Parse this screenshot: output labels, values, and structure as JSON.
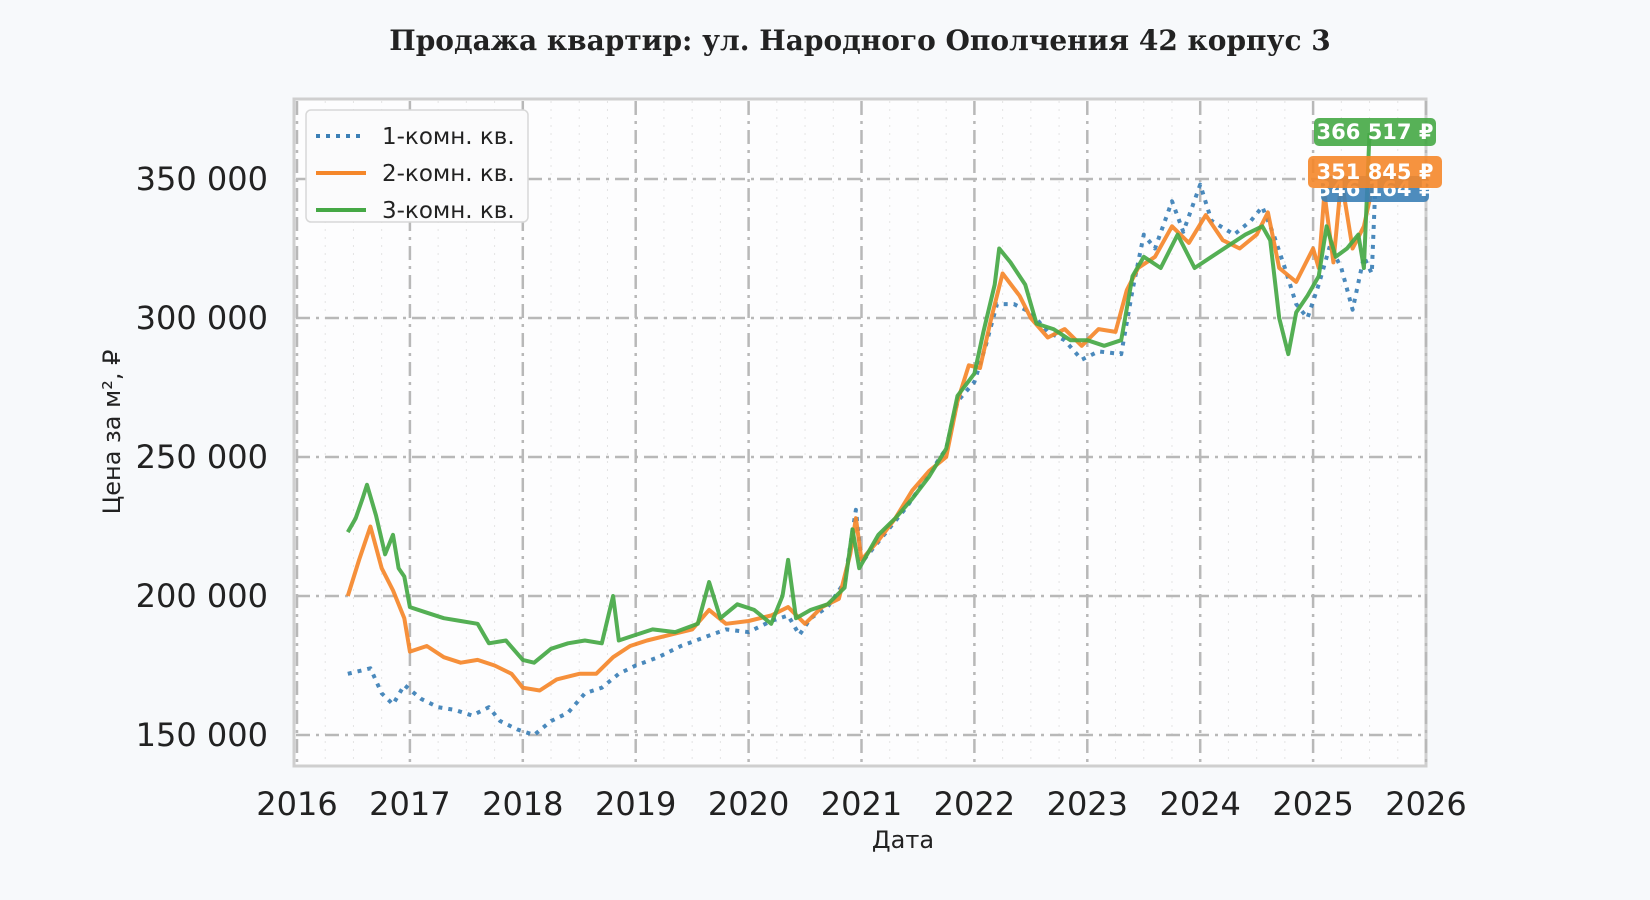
{
  "chart_data": {
    "type": "line",
    "title": "Продажа квартир: ул. Народного Ополчения 42 корпус 3",
    "xlabel": "Дата",
    "ylabel": "Цена за м², ₽",
    "x_ticks": [
      "2016",
      "2017",
      "2018",
      "2019",
      "2020",
      "2021",
      "2022",
      "2023",
      "2024",
      "2025",
      "2026"
    ],
    "y_ticks": [
      "150 000",
      "200 000",
      "250 000",
      "300 000",
      "350 000"
    ],
    "xlim": [
      2016,
      2026
    ],
    "ylim": [
      140000,
      378000
    ],
    "grid": true,
    "legend_position": "upper left",
    "series": [
      {
        "name": "1-комн. кв.",
        "color": "#3b7fb6",
        "style": "dotted",
        "last_value_label": "346 164 ₽",
        "points": [
          [
            2016.45,
            172000
          ],
          [
            2016.55,
            173000
          ],
          [
            2016.65,
            174000
          ],
          [
            2016.75,
            165000
          ],
          [
            2016.85,
            161000
          ],
          [
            2016.95,
            168000
          ],
          [
            2017.1,
            163000
          ],
          [
            2017.25,
            160000
          ],
          [
            2017.4,
            159000
          ],
          [
            2017.55,
            157000
          ],
          [
            2017.7,
            160000
          ],
          [
            2017.8,
            155000
          ],
          [
            2017.95,
            152000
          ],
          [
            2018.1,
            150000
          ],
          [
            2018.25,
            155000
          ],
          [
            2018.4,
            158000
          ],
          [
            2018.55,
            165000
          ],
          [
            2018.7,
            167000
          ],
          [
            2018.85,
            172000
          ],
          [
            2019.0,
            175000
          ],
          [
            2019.2,
            178000
          ],
          [
            2019.4,
            182000
          ],
          [
            2019.6,
            185000
          ],
          [
            2019.8,
            188000
          ],
          [
            2020.0,
            187000
          ],
          [
            2020.2,
            191000
          ],
          [
            2020.35,
            193000
          ],
          [
            2020.45,
            186000
          ],
          [
            2020.55,
            192000
          ],
          [
            2020.7,
            196000
          ],
          [
            2020.85,
            205000
          ],
          [
            2020.95,
            231000
          ],
          [
            2021.0,
            212000
          ],
          [
            2021.2,
            222000
          ],
          [
            2021.4,
            232000
          ],
          [
            2021.6,
            244000
          ],
          [
            2021.75,
            253000
          ],
          [
            2021.85,
            270000
          ],
          [
            2022.0,
            277000
          ],
          [
            2022.1,
            290000
          ],
          [
            2022.2,
            305000
          ],
          [
            2022.35,
            305000
          ],
          [
            2022.5,
            302000
          ],
          [
            2022.65,
            295000
          ],
          [
            2022.8,
            292000
          ],
          [
            2022.95,
            285000
          ],
          [
            2023.1,
            288000
          ],
          [
            2023.3,
            287000
          ],
          [
            2023.4,
            310000
          ],
          [
            2023.5,
            330000
          ],
          [
            2023.6,
            325000
          ],
          [
            2023.75,
            342000
          ],
          [
            2023.85,
            331000
          ],
          [
            2024.0,
            348000
          ],
          [
            2024.1,
            335000
          ],
          [
            2024.3,
            330000
          ],
          [
            2024.45,
            335000
          ],
          [
            2024.55,
            340000
          ],
          [
            2024.65,
            330000
          ],
          [
            2024.75,
            318000
          ],
          [
            2024.85,
            305000
          ],
          [
            2024.95,
            300000
          ],
          [
            2025.05,
            312000
          ],
          [
            2025.15,
            326000
          ],
          [
            2025.25,
            318000
          ],
          [
            2025.35,
            303000
          ],
          [
            2025.45,
            322000
          ],
          [
            2025.52,
            316000
          ],
          [
            2025.55,
            346164
          ]
        ]
      },
      {
        "name": "2-комн. кв.",
        "color": "#f5872a",
        "style": "solid",
        "last_value_label": "351 845 ₽",
        "points": [
          [
            2016.45,
            200000
          ],
          [
            2016.55,
            213000
          ],
          [
            2016.65,
            225000
          ],
          [
            2016.75,
            210000
          ],
          [
            2016.85,
            202000
          ],
          [
            2016.95,
            192000
          ],
          [
            2017.0,
            180000
          ],
          [
            2017.15,
            182000
          ],
          [
            2017.3,
            178000
          ],
          [
            2017.45,
            176000
          ],
          [
            2017.6,
            177000
          ],
          [
            2017.75,
            175000
          ],
          [
            2017.9,
            172000
          ],
          [
            2018.0,
            167000
          ],
          [
            2018.15,
            166000
          ],
          [
            2018.3,
            170000
          ],
          [
            2018.5,
            172000
          ],
          [
            2018.65,
            172000
          ],
          [
            2018.8,
            178000
          ],
          [
            2018.95,
            182000
          ],
          [
            2019.1,
            184000
          ],
          [
            2019.3,
            186000
          ],
          [
            2019.5,
            188000
          ],
          [
            2019.65,
            195000
          ],
          [
            2019.8,
            190000
          ],
          [
            2020.0,
            191000
          ],
          [
            2020.2,
            193000
          ],
          [
            2020.35,
            196000
          ],
          [
            2020.5,
            190000
          ],
          [
            2020.65,
            196000
          ],
          [
            2020.8,
            199000
          ],
          [
            2020.9,
            215000
          ],
          [
            2020.95,
            228000
          ],
          [
            2021.0,
            213000
          ],
          [
            2021.15,
            220000
          ],
          [
            2021.3,
            228000
          ],
          [
            2021.45,
            238000
          ],
          [
            2021.6,
            245000
          ],
          [
            2021.75,
            250000
          ],
          [
            2021.85,
            270000
          ],
          [
            2021.95,
            283000
          ],
          [
            2022.05,
            282000
          ],
          [
            2022.15,
            300000
          ],
          [
            2022.25,
            316000
          ],
          [
            2022.4,
            308000
          ],
          [
            2022.5,
            300000
          ],
          [
            2022.65,
            293000
          ],
          [
            2022.8,
            296000
          ],
          [
            2022.95,
            290000
          ],
          [
            2023.1,
            296000
          ],
          [
            2023.25,
            295000
          ],
          [
            2023.35,
            310000
          ],
          [
            2023.45,
            318000
          ],
          [
            2023.6,
            322000
          ],
          [
            2023.75,
            333000
          ],
          [
            2023.9,
            327000
          ],
          [
            2024.05,
            337000
          ],
          [
            2024.2,
            328000
          ],
          [
            2024.35,
            325000
          ],
          [
            2024.5,
            330000
          ],
          [
            2024.6,
            338000
          ],
          [
            2024.7,
            318000
          ],
          [
            2024.85,
            313000
          ],
          [
            2025.0,
            325000
          ],
          [
            2025.05,
            318000
          ],
          [
            2025.1,
            345000
          ],
          [
            2025.18,
            320000
          ],
          [
            2025.25,
            350000
          ],
          [
            2025.35,
            325000
          ],
          [
            2025.45,
            333000
          ],
          [
            2025.55,
            351845
          ]
        ]
      },
      {
        "name": "3-комн. кв.",
        "color": "#45a845",
        "style": "solid",
        "last_value_label": "366 517 ₽",
        "points": [
          [
            2016.45,
            223000
          ],
          [
            2016.52,
            228000
          ],
          [
            2016.58,
            235000
          ],
          [
            2016.62,
            240000
          ],
          [
            2016.7,
            229000
          ],
          [
            2016.78,
            215000
          ],
          [
            2016.85,
            222000
          ],
          [
            2016.9,
            210000
          ],
          [
            2016.95,
            207000
          ],
          [
            2017.0,
            196000
          ],
          [
            2017.15,
            194000
          ],
          [
            2017.3,
            192000
          ],
          [
            2017.45,
            191000
          ],
          [
            2017.6,
            190000
          ],
          [
            2017.7,
            183000
          ],
          [
            2017.85,
            184000
          ],
          [
            2018.0,
            177000
          ],
          [
            2018.1,
            176000
          ],
          [
            2018.25,
            181000
          ],
          [
            2018.4,
            183000
          ],
          [
            2018.55,
            184000
          ],
          [
            2018.7,
            183000
          ],
          [
            2018.8,
            200000
          ],
          [
            2018.85,
            184000
          ],
          [
            2019.0,
            186000
          ],
          [
            2019.15,
            188000
          ],
          [
            2019.35,
            187000
          ],
          [
            2019.55,
            190000
          ],
          [
            2019.65,
            205000
          ],
          [
            2019.75,
            192000
          ],
          [
            2019.9,
            197000
          ],
          [
            2020.05,
            195000
          ],
          [
            2020.2,
            190000
          ],
          [
            2020.3,
            200000
          ],
          [
            2020.35,
            213000
          ],
          [
            2020.42,
            192000
          ],
          [
            2020.55,
            195000
          ],
          [
            2020.7,
            197000
          ],
          [
            2020.85,
            203000
          ],
          [
            2020.92,
            224000
          ],
          [
            2020.98,
            210000
          ],
          [
            2021.15,
            222000
          ],
          [
            2021.3,
            228000
          ],
          [
            2021.45,
            235000
          ],
          [
            2021.6,
            243000
          ],
          [
            2021.75,
            253000
          ],
          [
            2021.85,
            272000
          ],
          [
            2022.0,
            280000
          ],
          [
            2022.08,
            295000
          ],
          [
            2022.18,
            312000
          ],
          [
            2022.22,
            325000
          ],
          [
            2022.32,
            320000
          ],
          [
            2022.45,
            312000
          ],
          [
            2022.55,
            298000
          ],
          [
            2022.7,
            296000
          ],
          [
            2022.85,
            292000
          ],
          [
            2023.0,
            292000
          ],
          [
            2023.15,
            290000
          ],
          [
            2023.3,
            292000
          ],
          [
            2023.4,
            315000
          ],
          [
            2023.5,
            322000
          ],
          [
            2023.65,
            318000
          ],
          [
            2023.8,
            330000
          ],
          [
            2023.95,
            318000
          ],
          [
            2024.1,
            322000
          ],
          [
            2024.25,
            326000
          ],
          [
            2024.4,
            330000
          ],
          [
            2024.55,
            333000
          ],
          [
            2024.62,
            328000
          ],
          [
            2024.7,
            300000
          ],
          [
            2024.78,
            287000
          ],
          [
            2024.85,
            302000
          ],
          [
            2024.95,
            308000
          ],
          [
            2025.05,
            315000
          ],
          [
            2025.12,
            333000
          ],
          [
            2025.2,
            322000
          ],
          [
            2025.3,
            325000
          ],
          [
            2025.4,
            330000
          ],
          [
            2025.45,
            318000
          ],
          [
            2025.5,
            366517
          ]
        ]
      }
    ]
  }
}
